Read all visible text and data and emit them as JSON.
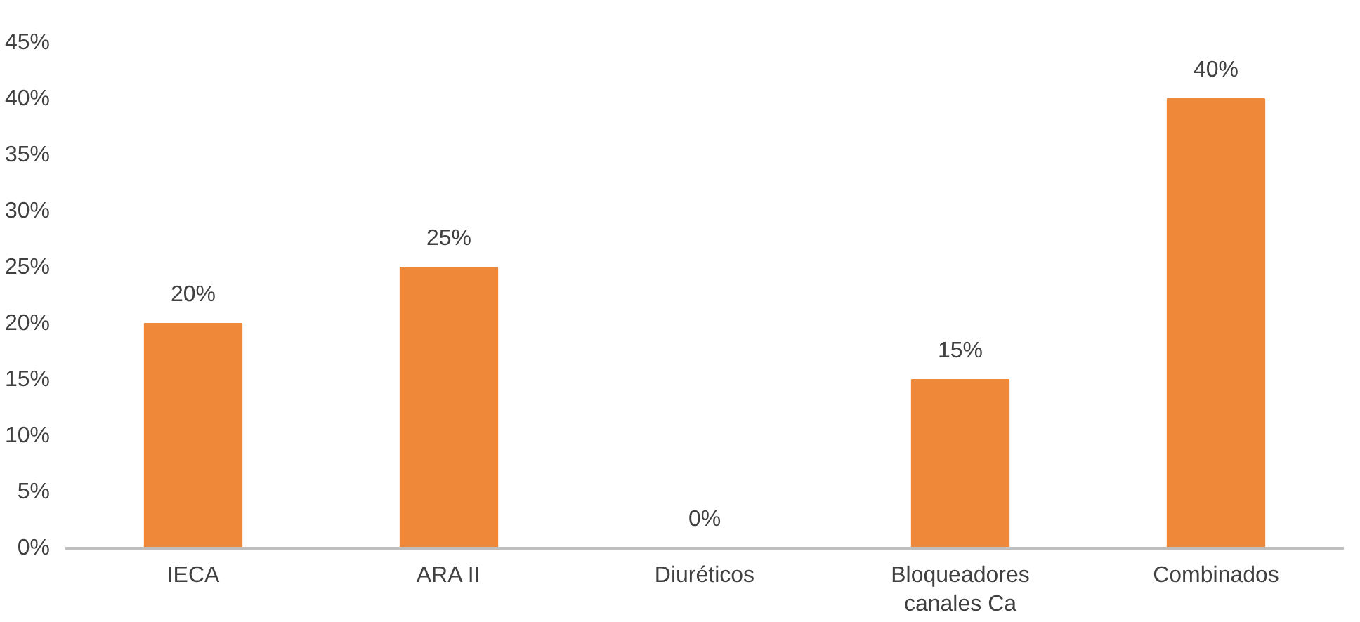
{
  "chart_data": {
    "type": "bar",
    "categories": [
      "IECA",
      "ARA II",
      "Diuréticos",
      "Bloqueadores canales Ca",
      "Combinados"
    ],
    "values": [
      20,
      25,
      0,
      15,
      40
    ],
    "value_labels": [
      "20%",
      "25%",
      "0%",
      "15%",
      "40%"
    ],
    "color": "#f0883a",
    "ylim": [
      0,
      45
    ],
    "yticks": [
      {
        "value": 0,
        "label": "0%"
      },
      {
        "value": 5,
        "label": "5%"
      },
      {
        "value": 10,
        "label": "10%"
      },
      {
        "value": 15,
        "label": "15%"
      },
      {
        "value": 20,
        "label": "20%"
      },
      {
        "value": 25,
        "label": "25%"
      },
      {
        "value": 30,
        "label": "30%"
      },
      {
        "value": 35,
        "label": "35%"
      },
      {
        "value": 40,
        "label": "40%"
      },
      {
        "value": 45,
        "label": "45%"
      }
    ],
    "grid": false
  }
}
